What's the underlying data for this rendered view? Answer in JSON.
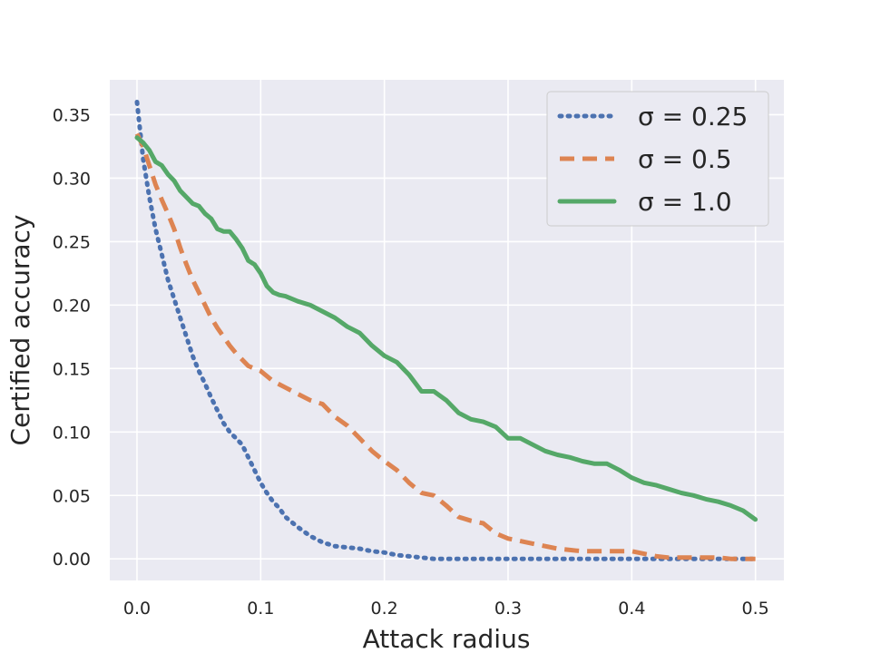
{
  "chart_data": {
    "type": "line",
    "xlabel": "Attack radius",
    "ylabel": "Certified accuracy",
    "xlim": [
      -0.022,
      0.523
    ],
    "ylim": [
      -0.017,
      0.3775
    ],
    "xticks": [
      0.0,
      0.1,
      0.2,
      0.3,
      0.4,
      0.5
    ],
    "xtick_labels": [
      "0.0",
      "0.1",
      "0.2",
      "0.3",
      "0.4",
      "0.5"
    ],
    "yticks": [
      0.0,
      0.05,
      0.1,
      0.15,
      0.2,
      0.25,
      0.3,
      0.35
    ],
    "ytick_labels": [
      "0.00",
      "0.05",
      "0.10",
      "0.15",
      "0.20",
      "0.25",
      "0.30",
      "0.35"
    ],
    "grid": true,
    "legend_position": "top-right",
    "series": [
      {
        "name": "σ = 0.25",
        "color": "#4c72b0",
        "style": "dotted",
        "x": [
          0.0,
          0.005,
          0.01,
          0.015,
          0.02,
          0.025,
          0.03,
          0.035,
          0.04,
          0.045,
          0.05,
          0.055,
          0.06,
          0.065,
          0.07,
          0.075,
          0.08,
          0.085,
          0.09,
          0.095,
          0.1,
          0.105,
          0.11,
          0.115,
          0.12,
          0.13,
          0.14,
          0.15,
          0.16,
          0.17,
          0.18,
          0.19,
          0.2,
          0.21,
          0.22,
          0.23,
          0.24,
          0.25,
          0.3,
          0.35,
          0.4,
          0.45,
          0.5
        ],
        "y": [
          0.36,
          0.315,
          0.285,
          0.26,
          0.24,
          0.22,
          0.205,
          0.19,
          0.175,
          0.16,
          0.148,
          0.138,
          0.127,
          0.117,
          0.107,
          0.1,
          0.095,
          0.09,
          0.08,
          0.07,
          0.06,
          0.052,
          0.045,
          0.04,
          0.033,
          0.025,
          0.018,
          0.013,
          0.01,
          0.009,
          0.008,
          0.006,
          0.005,
          0.003,
          0.002,
          0.001,
          0.0,
          0.0,
          0.0,
          0.0,
          0.0,
          0.0,
          0.0
        ]
      },
      {
        "name": "σ = 0.5",
        "color": "#dd8452",
        "style": "dashed",
        "x": [
          0.0,
          0.005,
          0.01,
          0.015,
          0.02,
          0.025,
          0.03,
          0.035,
          0.04,
          0.045,
          0.05,
          0.055,
          0.06,
          0.065,
          0.07,
          0.075,
          0.08,
          0.085,
          0.09,
          0.095,
          0.1,
          0.11,
          0.12,
          0.13,
          0.14,
          0.15,
          0.16,
          0.17,
          0.18,
          0.19,
          0.2,
          0.21,
          0.22,
          0.23,
          0.24,
          0.25,
          0.26,
          0.27,
          0.28,
          0.29,
          0.3,
          0.31,
          0.32,
          0.33,
          0.34,
          0.35,
          0.36,
          0.37,
          0.38,
          0.39,
          0.4,
          0.41,
          0.42,
          0.43,
          0.44,
          0.45,
          0.46,
          0.47,
          0.48,
          0.49,
          0.5
        ],
        "y": [
          0.335,
          0.325,
          0.31,
          0.295,
          0.283,
          0.272,
          0.26,
          0.245,
          0.232,
          0.22,
          0.21,
          0.2,
          0.19,
          0.182,
          0.175,
          0.168,
          0.162,
          0.157,
          0.152,
          0.15,
          0.148,
          0.14,
          0.135,
          0.13,
          0.125,
          0.122,
          0.112,
          0.105,
          0.095,
          0.085,
          0.077,
          0.07,
          0.06,
          0.052,
          0.05,
          0.042,
          0.033,
          0.03,
          0.028,
          0.02,
          0.016,
          0.014,
          0.012,
          0.01,
          0.008,
          0.007,
          0.006,
          0.006,
          0.006,
          0.006,
          0.006,
          0.004,
          0.002,
          0.001,
          0.001,
          0.001,
          0.001,
          0.001,
          0.0,
          0.0,
          0.0
        ]
      },
      {
        "name": "σ = 1.0",
        "color": "#55a868",
        "style": "solid",
        "x": [
          0.0,
          0.005,
          0.01,
          0.015,
          0.02,
          0.025,
          0.03,
          0.035,
          0.04,
          0.045,
          0.05,
          0.055,
          0.06,
          0.065,
          0.07,
          0.075,
          0.08,
          0.085,
          0.09,
          0.095,
          0.1,
          0.105,
          0.11,
          0.115,
          0.12,
          0.13,
          0.14,
          0.15,
          0.16,
          0.17,
          0.18,
          0.19,
          0.2,
          0.21,
          0.22,
          0.23,
          0.24,
          0.25,
          0.26,
          0.27,
          0.28,
          0.29,
          0.3,
          0.31,
          0.32,
          0.33,
          0.34,
          0.35,
          0.36,
          0.37,
          0.38,
          0.39,
          0.4,
          0.41,
          0.42,
          0.43,
          0.44,
          0.45,
          0.46,
          0.47,
          0.48,
          0.49,
          0.5
        ],
        "y": [
          0.332,
          0.328,
          0.322,
          0.313,
          0.31,
          0.303,
          0.298,
          0.29,
          0.285,
          0.28,
          0.278,
          0.272,
          0.268,
          0.26,
          0.258,
          0.258,
          0.252,
          0.245,
          0.235,
          0.232,
          0.225,
          0.215,
          0.21,
          0.208,
          0.207,
          0.203,
          0.2,
          0.195,
          0.19,
          0.183,
          0.178,
          0.168,
          0.16,
          0.155,
          0.145,
          0.132,
          0.132,
          0.125,
          0.115,
          0.11,
          0.108,
          0.104,
          0.095,
          0.095,
          0.09,
          0.085,
          0.082,
          0.08,
          0.077,
          0.075,
          0.075,
          0.07,
          0.064,
          0.06,
          0.058,
          0.055,
          0.052,
          0.05,
          0.047,
          0.045,
          0.042,
          0.038,
          0.031
        ]
      }
    ]
  }
}
